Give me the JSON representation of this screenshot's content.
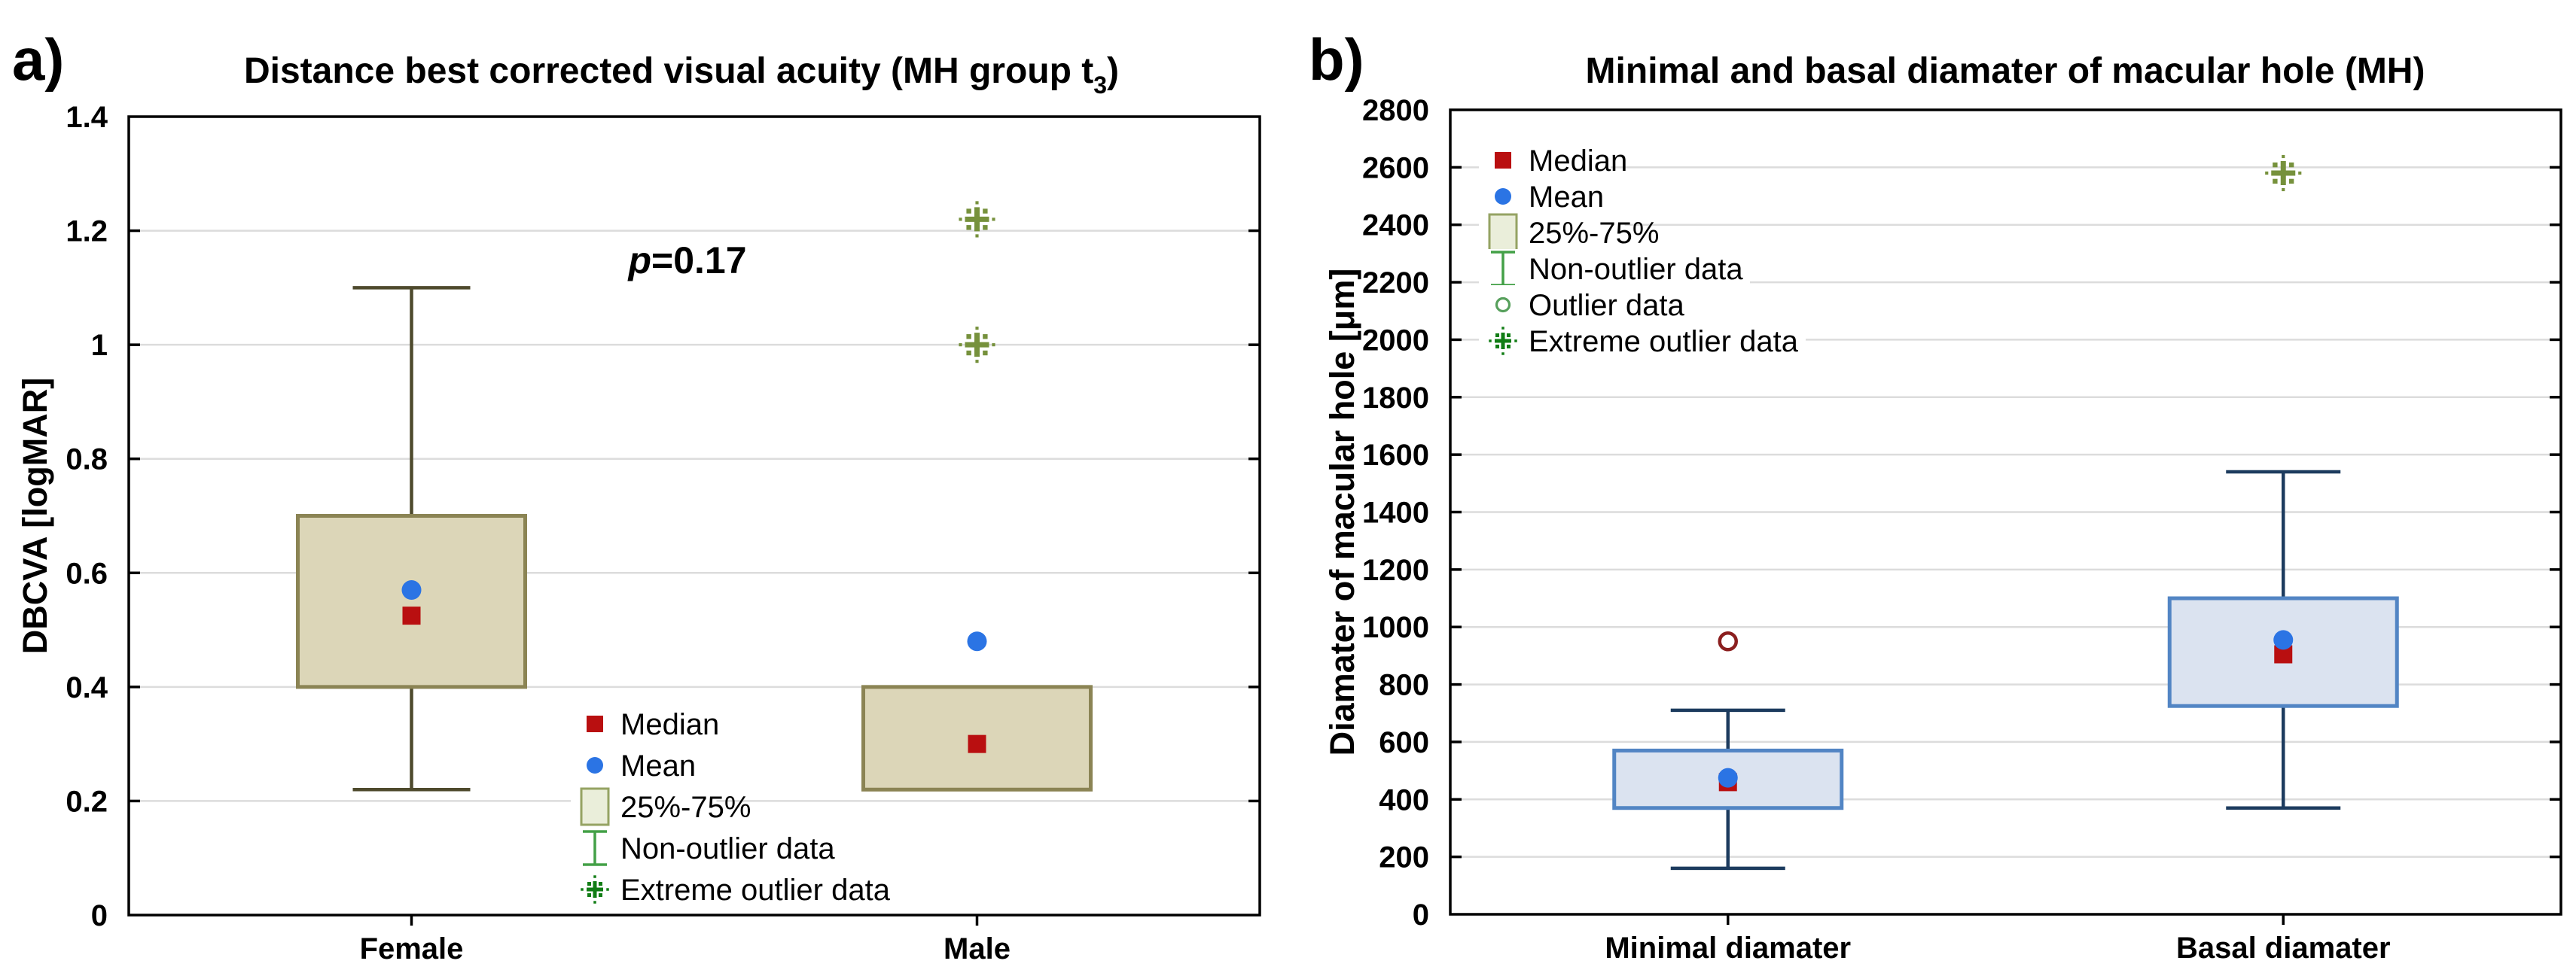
{
  "page": {
    "background": "#ffffff"
  },
  "panels": [
    {
      "tag": "a)",
      "title": {
        "main": "Distance best corrected visual acuity (MH group t",
        "sub": "3",
        "suffix": ")"
      }
    },
    {
      "tag": "b)",
      "title": {
        "main": "Minimal and basal diamater of macular hole (MH)",
        "sub": "",
        "suffix": ""
      }
    }
  ],
  "chart_data": [
    {
      "type": "boxplot",
      "title": "Distance best corrected visual acuity (MH group t3)",
      "xlabel": "",
      "ylabel": "DBCVA [logMAR]",
      "ylim": [
        0,
        1.4
      ],
      "ytick_step": 0.2,
      "grid": true,
      "legend_position": "inside-bottom-center",
      "annotation": "p=0.17",
      "categories": [
        "Female",
        "Male"
      ],
      "series": [
        {
          "category": "Female",
          "q1": 0.4,
          "q3": 0.7,
          "median": 0.525,
          "mean": 0.57,
          "whisker_low": 0.22,
          "whisker_high": 1.1,
          "outliers": [],
          "extreme_outliers": []
        },
        {
          "category": "Male",
          "q1": 0.22,
          "q3": 0.4,
          "median": 0.3,
          "mean": 0.48,
          "whisker_low": 0.22,
          "whisker_high": 0.4,
          "outliers": [],
          "extreme_outliers": [
            1.0,
            1.22
          ]
        }
      ],
      "legend": [
        {
          "label": "Median",
          "marker": "square",
          "color": "#b90f10"
        },
        {
          "label": "Mean",
          "marker": "circle",
          "color": "#2b74e4"
        },
        {
          "label": "25%-75%",
          "marker": "box",
          "fill": "#eaeeda",
          "border": "#95a363"
        },
        {
          "label": "Non-outlier data",
          "marker": "whisker",
          "color": "#43a047"
        },
        {
          "label": "Extreme outlier data",
          "marker": "asterisk",
          "color": "#117d15"
        }
      ],
      "style": {
        "box_fill": "#dcd6b8",
        "box_border": "#8b8454",
        "whisker_color": "#4e4a2d",
        "median_color": "#b90f10",
        "mean_color": "#2b74e4",
        "outlier_color": "#8b1f1f",
        "extreme_color": "#76913c",
        "grid_color": "#dcdcdc",
        "axis_color": "#000000"
      }
    },
    {
      "type": "boxplot",
      "title": "Minimal and basal diamater of macular hole (MH)",
      "xlabel": "",
      "ylabel": "Diamater of macular hole [μm]",
      "ylim": [
        0,
        2800
      ],
      "ytick_step": 200,
      "grid": true,
      "legend_position": "inside-top-left",
      "annotation": "",
      "categories": [
        "Minimal diamater",
        "Basal diamater"
      ],
      "series": [
        {
          "category": "Minimal diamater",
          "q1": 370,
          "q3": 570,
          "median": 460,
          "mean": 475,
          "whisker_low": 160,
          "whisker_high": 710,
          "outliers": [
            950
          ],
          "extreme_outliers": []
        },
        {
          "category": "Basal diamater",
          "q1": 725,
          "q3": 1100,
          "median": 905,
          "mean": 955,
          "whisker_low": 370,
          "whisker_high": 1540,
          "outliers": [],
          "extreme_outliers": [
            2580
          ]
        }
      ],
      "legend": [
        {
          "label": "Median",
          "marker": "square",
          "color": "#b90f10"
        },
        {
          "label": "Mean",
          "marker": "circle",
          "color": "#2b74e4"
        },
        {
          "label": "25%-75%",
          "marker": "box",
          "fill": "#eaeeda",
          "border": "#95a363"
        },
        {
          "label": "Non-outlier data",
          "marker": "whisker",
          "color": "#43a047"
        },
        {
          "label": "Outlier data",
          "marker": "ring",
          "color": "#57a05c"
        },
        {
          "label": "Extreme outlier data",
          "marker": "asterisk",
          "color": "#117d15"
        }
      ],
      "style": {
        "box_fill": "#dbe3f0",
        "box_border": "#5285c4",
        "whisker_color": "#1c3b5e",
        "median_color": "#b90f10",
        "mean_color": "#2b74e4",
        "outlier_color": "#8b1f1f",
        "extreme_color": "#76913c",
        "grid_color": "#dcdcdc",
        "axis_color": "#000000"
      }
    }
  ]
}
